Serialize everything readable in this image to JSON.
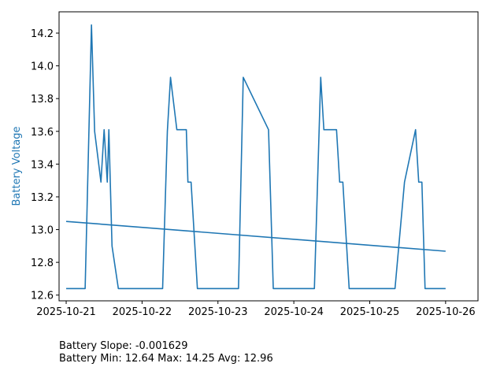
{
  "chart_data": {
    "type": "line",
    "title": "",
    "xlabel": "",
    "ylabel": "Battery Voltage",
    "xlim": [
      "2025-10-20T21:45",
      "2025-10-26T10:15"
    ],
    "ylim": [
      12.565,
      14.33
    ],
    "xticks": [
      "2025-10-21",
      "2025-10-22",
      "2025-10-23",
      "2025-10-24",
      "2025-10-25",
      "2025-10-26"
    ],
    "yticks": [
      "12.6",
      "12.8",
      "13.0",
      "13.2",
      "13.4",
      "13.6",
      "13.8",
      "14.0",
      "14.2"
    ],
    "grid": false,
    "series": [
      {
        "color": "#1f77b4",
        "x": [
          "2025-10-21T00:00",
          "2025-10-21T06:00",
          "2025-10-21T08:00",
          "2025-10-21T09:00",
          "2025-10-21T11:00",
          "2025-10-21T12:00",
          "2025-10-21T13:00",
          "2025-10-21T13:30",
          "2025-10-21T14:30",
          "2025-10-21T16:30",
          "2025-10-21T17:30",
          "2025-10-22T00:00",
          "2025-10-22T06:30",
          "2025-10-22T08:00",
          "2025-10-22T09:00",
          "2025-10-22T11:00",
          "2025-10-22T14:00",
          "2025-10-22T14:30",
          "2025-10-22T15:30",
          "2025-10-22T17:30",
          "2025-10-23T00:00",
          "2025-10-23T05:00",
          "2025-10-23T06:30",
          "2025-10-23T08:00",
          "2025-10-23T16:00",
          "2025-10-23T17:30",
          "2025-10-24T00:00",
          "2025-10-24T06:30",
          "2025-10-24T08:30",
          "2025-10-24T09:30",
          "2025-10-24T13:30",
          "2025-10-24T14:30",
          "2025-10-24T15:30",
          "2025-10-24T17:30",
          "2025-10-25T00:00",
          "2025-10-25T07:30",
          "2025-10-25T08:00",
          "2025-10-25T11:00",
          "2025-10-25T14:30",
          "2025-10-25T15:30",
          "2025-10-25T16:30",
          "2025-10-25T17:30",
          "2025-10-26T00:00"
        ],
        "values": [
          12.64,
          12.64,
          14.25,
          13.6,
          13.29,
          13.61,
          13.29,
          13.61,
          12.9,
          12.64,
          12.64,
          12.64,
          12.64,
          13.6,
          13.93,
          13.61,
          13.61,
          13.29,
          13.29,
          12.64,
          12.64,
          12.64,
          12.64,
          13.93,
          13.61,
          12.64,
          12.64,
          12.64,
          13.93,
          13.61,
          13.61,
          13.29,
          13.29,
          12.64,
          12.64,
          12.64,
          12.64,
          13.29,
          13.61,
          13.29,
          13.29,
          12.64,
          12.64
        ]
      },
      {
        "color": "#1f77b4",
        "x": [
          "2025-10-21T00:00",
          "2025-10-26T00:00"
        ],
        "values": [
          13.05,
          12.868
        ]
      }
    ]
  },
  "stats": {
    "slope_text": "Battery Slope: -0.001629",
    "minmax_text": "Battery Min: 12.64 Max: 14.25 Avg: 12.96"
  }
}
